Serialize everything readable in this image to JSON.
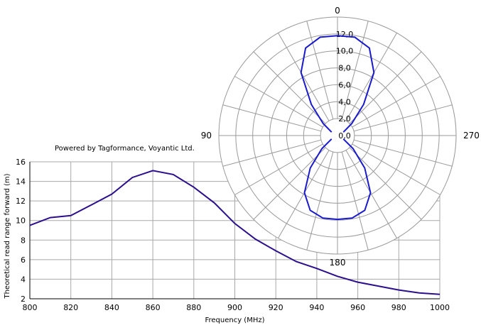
{
  "caption": "Powered by Tagformance, Voyantic Ltd.",
  "chart_data": [
    {
      "type": "line",
      "title": "",
      "xlabel": "Frequency (MHz)",
      "ylabel": "Theoretical read range forward (m)",
      "xlim": [
        800,
        1000
      ],
      "ylim": [
        2,
        16
      ],
      "xticks": [
        "800",
        "820",
        "840",
        "860",
        "880",
        "900",
        "920",
        "940",
        "960",
        "980",
        "1000"
      ],
      "yticks": [
        "2",
        "4",
        "6",
        "8",
        "10",
        "12",
        "14",
        "16"
      ],
      "grid": true,
      "line_color": "#2b0f8c",
      "series": [
        {
          "x": [
            800,
            810,
            820,
            830,
            840,
            850,
            860,
            870,
            880,
            890,
            900,
            910,
            920,
            930,
            940,
            950,
            960,
            970,
            980,
            990,
            1000
          ],
          "y": [
            9.5,
            10.3,
            10.5,
            11.6,
            12.7,
            14.4,
            15.1,
            14.7,
            13.4,
            11.8,
            9.7,
            8.1,
            6.9,
            5.8,
            5.1,
            4.3,
            3.7,
            3.3,
            2.9,
            2.6,
            2.45
          ]
        }
      ]
    },
    {
      "type": "polar",
      "title": "",
      "angle_labels": [
        "0",
        "90",
        "180",
        "270"
      ],
      "radial_labels": [
        "0,0",
        "2,0",
        "4,0",
        "6,0",
        "8,0",
        "10,0",
        "12,0"
      ],
      "rlim": [
        0,
        14
      ],
      "line_color": "#1a1acc",
      "series": [
        {
          "angle_deg": [
            -60,
            -50,
            -40,
            -30,
            -20,
            -10,
            0,
            10,
            20,
            30,
            40,
            50,
            60,
            120,
            130,
            140,
            150,
            160,
            170,
            180,
            190,
            200,
            210,
            220,
            230,
            240
          ],
          "r": [
            0.8,
            2.2,
            4.8,
            8.6,
            11.0,
            11.8,
            11.8,
            11.8,
            11.0,
            8.6,
            4.8,
            2.2,
            0.8,
            0.8,
            2.4,
            5.0,
            7.8,
            9.4,
            9.9,
            9.9,
            9.9,
            9.4,
            7.8,
            5.0,
            2.4,
            0.8
          ]
        }
      ]
    }
  ]
}
